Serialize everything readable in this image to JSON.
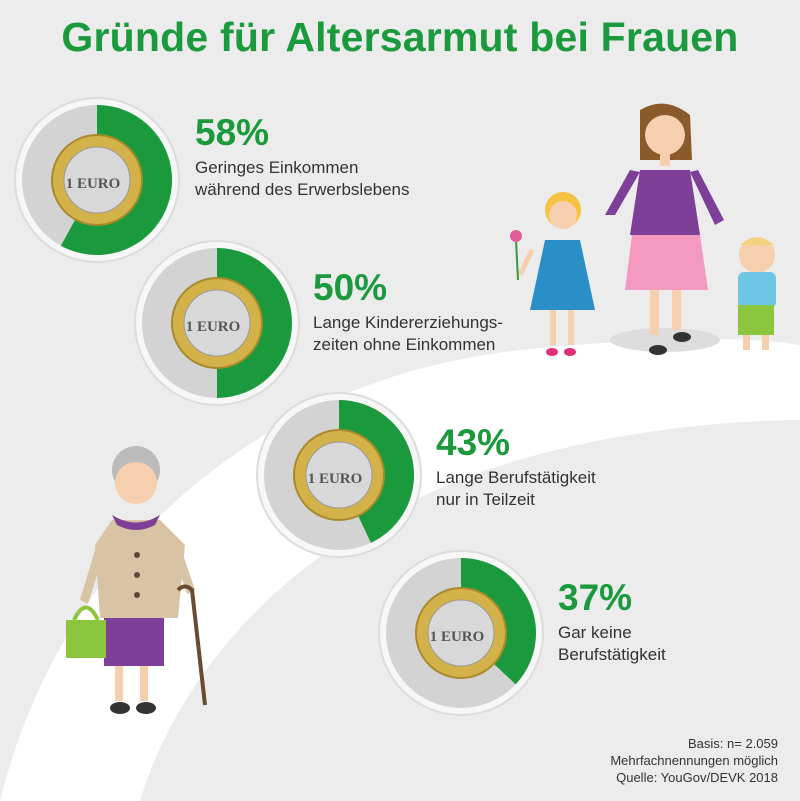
{
  "title": "Gründe für Altersarmut bei Frauen",
  "colors": {
    "accent": "#1a9a3c",
    "remainder": "#d3d3d3",
    "background": "#ececec"
  },
  "coin_label": "1 EURO",
  "chart_data": {
    "type": "pie",
    "title": "Gründe für Altersarmut bei Frauen",
    "unit": "%",
    "items": [
      {
        "value": 58,
        "pct_label": "58%",
        "label_lines": [
          "Geringes Einkommen",
          "während des Erwerbslebens"
        ]
      },
      {
        "value": 50,
        "pct_label": "50%",
        "label_lines": [
          "Lange Kindererziehungs-",
          "zeiten ohne Einkommen"
        ]
      },
      {
        "value": 43,
        "pct_label": "43%",
        "label_lines": [
          "Lange Berufstätigkeit",
          "nur in Teilzeit"
        ]
      },
      {
        "value": 37,
        "pct_label": "37%",
        "label_lines": [
          "Gar keine",
          "Berufstätigkeit"
        ]
      }
    ]
  },
  "footer": {
    "basis": "Basis: n= 2.059",
    "note": "Mehrfachnennungen möglich",
    "source": "Quelle: YouGov/DEVK 2018"
  }
}
